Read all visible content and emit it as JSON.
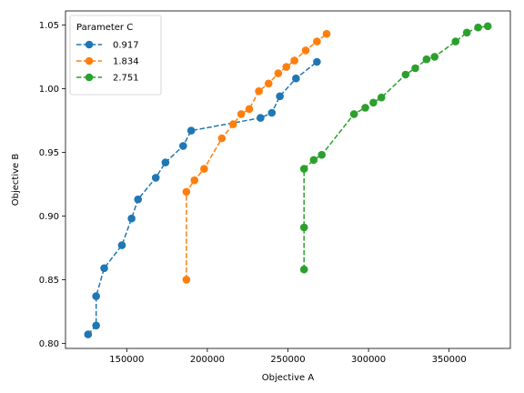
{
  "chart_data": {
    "type": "line",
    "xlabel": "Objective A",
    "ylabel": "Objective B",
    "xlim": [
      112000,
      388000
    ],
    "ylim": [
      0.796,
      1.061
    ],
    "xticks": [
      150000,
      200000,
      250000,
      300000,
      350000
    ],
    "xtick_labels": [
      "150000",
      "200000",
      "250000",
      "300000",
      "350000"
    ],
    "yticks": [
      0.8,
      0.85,
      0.9,
      0.95,
      1.0,
      1.05
    ],
    "ytick_labels": [
      "0.80",
      "0.85",
      "0.90",
      "0.95",
      "1.00",
      "1.05"
    ],
    "grid": false,
    "legend": {
      "title": "Parameter C",
      "placement": "top-left",
      "entries": [
        "0.917",
        "1.834",
        "2.751"
      ]
    },
    "series": [
      {
        "name": "0.917",
        "color": "#1f77b4",
        "marker": "circle",
        "linestyle": "dashed",
        "x": [
          126000,
          131000,
          131000,
          136000,
          147000,
          153000,
          157000,
          168000,
          174000,
          185000,
          190000,
          233000,
          240000,
          245000,
          255000,
          268000
        ],
        "y": [
          0.807,
          0.814,
          0.837,
          0.859,
          0.877,
          0.898,
          0.913,
          0.93,
          0.942,
          0.955,
          0.967,
          0.977,
          0.981,
          0.994,
          1.008,
          1.021
        ]
      },
      {
        "name": "1.834",
        "color": "#ff7f0e",
        "marker": "circle",
        "linestyle": "dashed",
        "x": [
          187000,
          187000,
          192000,
          198000,
          209000,
          216000,
          221000,
          226000,
          232000,
          238000,
          244000,
          249000,
          254000,
          261000,
          268000,
          274000
        ],
        "y": [
          0.85,
          0.919,
          0.928,
          0.937,
          0.961,
          0.972,
          0.98,
          0.984,
          0.998,
          1.004,
          1.012,
          1.017,
          1.022,
          1.03,
          1.037,
          1.043
        ]
      },
      {
        "name": "2.751",
        "color": "#2ca02c",
        "marker": "circle",
        "linestyle": "dashed",
        "x": [
          260000,
          260000,
          260000,
          266000,
          271000,
          291000,
          298000,
          303000,
          308000,
          323000,
          329000,
          336000,
          341000,
          354000,
          361000,
          368000,
          374000
        ],
        "y": [
          0.858,
          0.891,
          0.937,
          0.944,
          0.948,
          0.98,
          0.985,
          0.989,
          0.993,
          1.011,
          1.016,
          1.023,
          1.025,
          1.037,
          1.044,
          1.048,
          1.049
        ]
      }
    ]
  }
}
